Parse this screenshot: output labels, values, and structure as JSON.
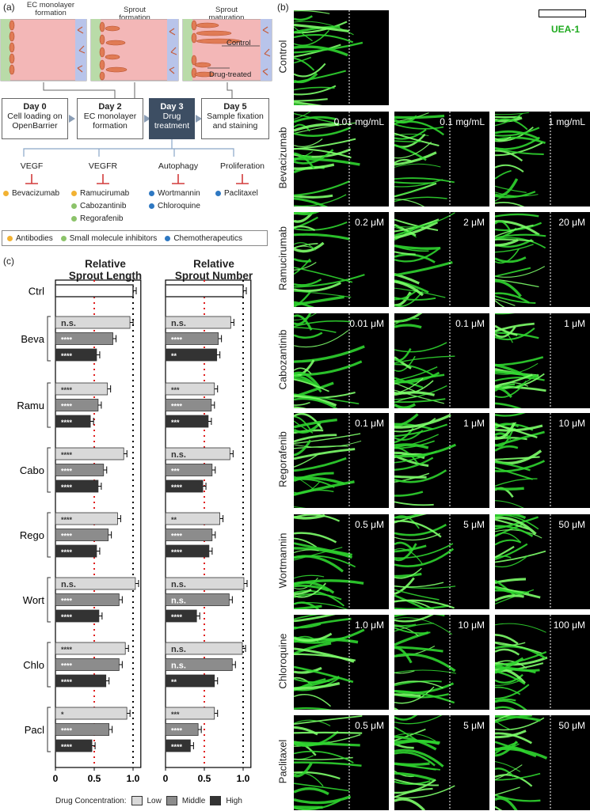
{
  "panel_a": {
    "label": "(a)",
    "stages": [
      {
        "title": "EC monolayer\nformation"
      },
      {
        "title": "Sprout\nformation"
      },
      {
        "title": "Sprout\nmaturation",
        "annotations": [
          "Control",
          "Drug-treated"
        ]
      }
    ],
    "days": [
      {
        "day": "Day 0",
        "text": "Cell loading on\nOpenBarrier"
      },
      {
        "day": "Day 2",
        "text": "EC monolayer\nformation"
      },
      {
        "day": "Day 3",
        "text": "Drug\ntreatment"
      },
      {
        "day": "Day 5",
        "text": "Sample fixation\nand staining"
      }
    ],
    "targets": [
      {
        "name": "VEGF",
        "drugs": [
          {
            "name": "Bevacizumab",
            "class": "antibody"
          }
        ]
      },
      {
        "name": "VEGFR",
        "drugs": [
          {
            "name": "Ramucirumab",
            "class": "antibody"
          },
          {
            "name": "Cabozantinib",
            "class": "small"
          },
          {
            "name": "Regorafenib",
            "class": "small"
          }
        ]
      },
      {
        "name": "Autophagy",
        "drugs": [
          {
            "name": "Wortmannin",
            "class": "chemo"
          },
          {
            "name": "Chloroquine",
            "class": "chemo"
          }
        ]
      },
      {
        "name": "Proliferation",
        "drugs": [
          {
            "name": "Paclitaxel",
            "class": "chemo"
          }
        ]
      }
    ],
    "legend": [
      {
        "label": "Antibodies",
        "color": "#f2b233"
      },
      {
        "label": "Small molecule inhibitors",
        "color": "#8cc36a"
      },
      {
        "label": "Chemotherapeutics",
        "color": "#2e78c2"
      }
    ]
  },
  "panel_b": {
    "label": "(b)",
    "stain": "UEA-1",
    "rows": [
      {
        "name": "Control",
        "concs": [
          ""
        ]
      },
      {
        "name": "Bevacizumab",
        "concs": [
          "0.01 mg/mL",
          "0.1 mg/mL",
          "1 mg/mL"
        ]
      },
      {
        "name": "Ramucirumab",
        "concs": [
          "0.2 μM",
          "2 μM",
          "20 μM"
        ]
      },
      {
        "name": "Cabozantinib",
        "concs": [
          "0.01 μM",
          "0.1 μM",
          "1 μM"
        ]
      },
      {
        "name": "Regorafenib",
        "concs": [
          "0.1 μM",
          "1 μM",
          "10 μM"
        ]
      },
      {
        "name": "Wortmannin",
        "concs": [
          "0.5 μM",
          "5 μM",
          "50 μM"
        ]
      },
      {
        "name": "Chloroquine",
        "concs": [
          "1.0 μM",
          "10 μM",
          "100 μM"
        ]
      },
      {
        "name": "Paclitaxel",
        "concs": [
          "0.5 μM",
          "5 μM",
          "50 μM"
        ]
      }
    ]
  },
  "panel_c": {
    "label": "(c)",
    "legend_title": "Drug Concentration:",
    "legend": [
      {
        "label": "Low",
        "color": "#d9d9d9"
      },
      {
        "label": "Middle",
        "color": "#8c8c8c"
      },
      {
        "label": "High",
        "color": "#333333"
      }
    ]
  },
  "chart_data": [
    {
      "type": "bar",
      "title": "Relative\nSprout Length",
      "xlim": [
        0,
        1.1
      ],
      "xticks": [
        "0",
        "0.5",
        "1.0"
      ],
      "groups": [
        {
          "label": "Ctrl",
          "bars": [
            {
              "value": 1.0,
              "sig": ""
            }
          ]
        },
        {
          "label": "Beva",
          "bars": [
            {
              "value": 0.96,
              "sig": "n.s."
            },
            {
              "value": 0.74,
              "sig": "****"
            },
            {
              "value": 0.53,
              "sig": "****"
            }
          ]
        },
        {
          "label": "Ramu",
          "bars": [
            {
              "value": 0.67,
              "sig": "****"
            },
            {
              "value": 0.55,
              "sig": "****"
            },
            {
              "value": 0.45,
              "sig": "****"
            }
          ]
        },
        {
          "label": "Cabo",
          "bars": [
            {
              "value": 0.88,
              "sig": "****"
            },
            {
              "value": 0.62,
              "sig": "****"
            },
            {
              "value": 0.55,
              "sig": "****"
            }
          ]
        },
        {
          "label": "Rego",
          "bars": [
            {
              "value": 0.8,
              "sig": "****"
            },
            {
              "value": 0.68,
              "sig": "****"
            },
            {
              "value": 0.53,
              "sig": "****"
            }
          ]
        },
        {
          "label": "Wort",
          "bars": [
            {
              "value": 1.03,
              "sig": "n.s."
            },
            {
              "value": 0.82,
              "sig": "****"
            },
            {
              "value": 0.56,
              "sig": "****"
            }
          ]
        },
        {
          "label": "Chlo",
          "bars": [
            {
              "value": 0.9,
              "sig": "****"
            },
            {
              "value": 0.82,
              "sig": "****"
            },
            {
              "value": 0.65,
              "sig": "****"
            }
          ]
        },
        {
          "label": "Pacl",
          "bars": [
            {
              "value": 0.92,
              "sig": "*"
            },
            {
              "value": 0.69,
              "sig": "****"
            },
            {
              "value": 0.47,
              "sig": "****"
            }
          ]
        }
      ]
    },
    {
      "type": "bar",
      "title": "Relative\nSprout Number",
      "xlim": [
        0,
        1.1
      ],
      "xticks": [
        "0",
        "0.5",
        "1.0"
      ],
      "groups": [
        {
          "label": "Ctrl",
          "bars": [
            {
              "value": 1.0,
              "sig": ""
            }
          ]
        },
        {
          "label": "Beva",
          "bars": [
            {
              "value": 0.84,
              "sig": "n.s."
            },
            {
              "value": 0.68,
              "sig": "****"
            },
            {
              "value": 0.66,
              "sig": "**"
            }
          ]
        },
        {
          "label": "Ramu",
          "bars": [
            {
              "value": 0.63,
              "sig": "***"
            },
            {
              "value": 0.59,
              "sig": "****"
            },
            {
              "value": 0.55,
              "sig": "***"
            }
          ]
        },
        {
          "label": "Cabo",
          "bars": [
            {
              "value": 0.83,
              "sig": "n.s."
            },
            {
              "value": 0.6,
              "sig": "***"
            },
            {
              "value": 0.48,
              "sig": "****"
            }
          ]
        },
        {
          "label": "Rego",
          "bars": [
            {
              "value": 0.7,
              "sig": "**"
            },
            {
              "value": 0.6,
              "sig": "****"
            },
            {
              "value": 0.56,
              "sig": "****"
            }
          ]
        },
        {
          "label": "Wort",
          "bars": [
            {
              "value": 1.01,
              "sig": "n.s."
            },
            {
              "value": 0.82,
              "sig": "n.s."
            },
            {
              "value": 0.4,
              "sig": "****"
            }
          ]
        },
        {
          "label": "Chlo",
          "bars": [
            {
              "value": 0.99,
              "sig": "n.s."
            },
            {
              "value": 0.86,
              "sig": "n.s."
            },
            {
              "value": 0.63,
              "sig": "**"
            }
          ]
        },
        {
          "label": "Pacl",
          "bars": [
            {
              "value": 0.63,
              "sig": "***"
            },
            {
              "value": 0.42,
              "sig": "****"
            },
            {
              "value": 0.32,
              "sig": "****"
            }
          ]
        }
      ]
    }
  ]
}
